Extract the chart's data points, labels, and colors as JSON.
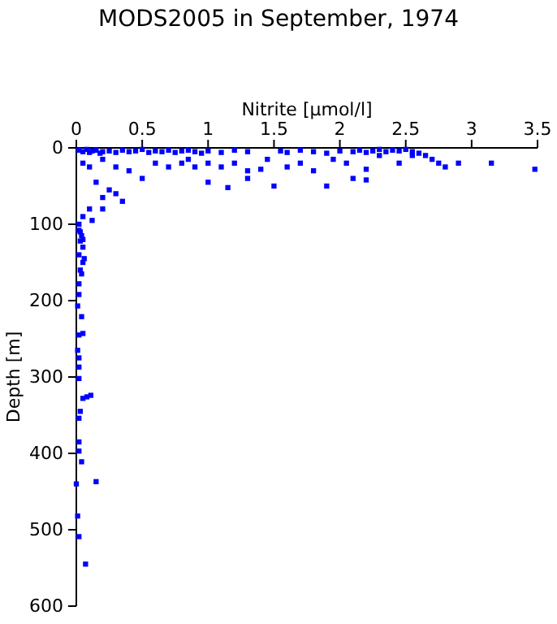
{
  "chart_data": {
    "type": "scatter",
    "title": "MODS2005 in September, 1974",
    "xlabel": "Nitrite [µmol/l]",
    "ylabel": "Depth [m]",
    "xlim": [
      0,
      3.5
    ],
    "ylim": [
      600,
      0
    ],
    "xticks": [
      0,
      0.5,
      1,
      1.5,
      2,
      2.5,
      3,
      3.5
    ],
    "yticks": [
      0,
      100,
      200,
      300,
      400,
      500,
      600
    ],
    "marker": "square",
    "grid": false,
    "series": [
      {
        "color": "#0000ff",
        "x": [
          0.02,
          0.05,
          0.08,
          0.1,
          0.12,
          0.15,
          0.18,
          0.2,
          0.25,
          0.3,
          0.35,
          0.4,
          0.45,
          0.5,
          0.55,
          0.6,
          0.65,
          0.7,
          0.75,
          0.8,
          0.85,
          0.9,
          0.95,
          1.0,
          1.1,
          1.2,
          1.3,
          1.55,
          1.6,
          1.7,
          1.8,
          1.9,
          2.0,
          2.1,
          2.15,
          2.2,
          2.25,
          2.3,
          2.35,
          2.4,
          2.45,
          2.5,
          2.55,
          2.6,
          0.05,
          0.1,
          0.2,
          0.3,
          0.4,
          0.6,
          0.7,
          0.8,
          0.85,
          0.9,
          1.0,
          1.1,
          1.2,
          1.3,
          1.4,
          1.45,
          1.6,
          1.7,
          1.8,
          1.95,
          2.05,
          2.2,
          2.3,
          2.45,
          2.55,
          2.65,
          2.7,
          2.75,
          2.8,
          2.9,
          3.15,
          3.48,
          1.0,
          1.3,
          1.5,
          1.9,
          2.1,
          2.2,
          1.15,
          0.35,
          0.5,
          0.3,
          0.25,
          0.15,
          0.2,
          0.1,
          0.05,
          0.2,
          0.12,
          0.02,
          0.03,
          0.05,
          0.02,
          0.04,
          0.03,
          0.05,
          0.02,
          0.06,
          0.05,
          0.03,
          0.04,
          0.02,
          0.02,
          0.01,
          0.04,
          0.02,
          0.05,
          0.01,
          0.02,
          0.02,
          0.02,
          0.05,
          0.08,
          0.11,
          0.03,
          0.02,
          0.02,
          0.02,
          0.04,
          0.15,
          0.0,
          0.01,
          0.02,
          0.07
        ],
        "values": [
          3,
          5,
          2,
          6,
          4,
          3,
          7,
          5,
          4,
          6,
          3,
          5,
          4,
          2,
          6,
          4,
          5,
          3,
          6,
          4,
          3,
          5,
          7,
          4,
          6,
          3,
          5,
          4,
          6,
          3,
          5,
          7,
          4,
          5,
          3,
          6,
          4,
          2,
          5,
          3,
          4,
          2,
          5,
          7,
          20,
          25,
          15,
          25,
          30,
          20,
          25,
          20,
          15,
          25,
          20,
          25,
          20,
          30,
          28,
          15,
          25,
          20,
          30,
          15,
          20,
          28,
          10,
          20,
          10,
          10,
          15,
          20,
          25,
          20,
          20,
          28,
          45,
          40,
          50,
          50,
          40,
          42,
          52,
          70,
          40,
          60,
          55,
          45,
          65,
          80,
          90,
          80,
          95,
          100,
          110,
          120,
          108,
          115,
          122,
          130,
          140,
          145,
          150,
          160,
          165,
          178,
          192,
          207,
          221,
          245,
          243,
          265,
          275,
          287,
          302,
          328,
          326,
          324,
          345,
          354,
          385,
          397,
          411,
          437,
          440,
          482,
          509,
          545
        ]
      }
    ]
  }
}
